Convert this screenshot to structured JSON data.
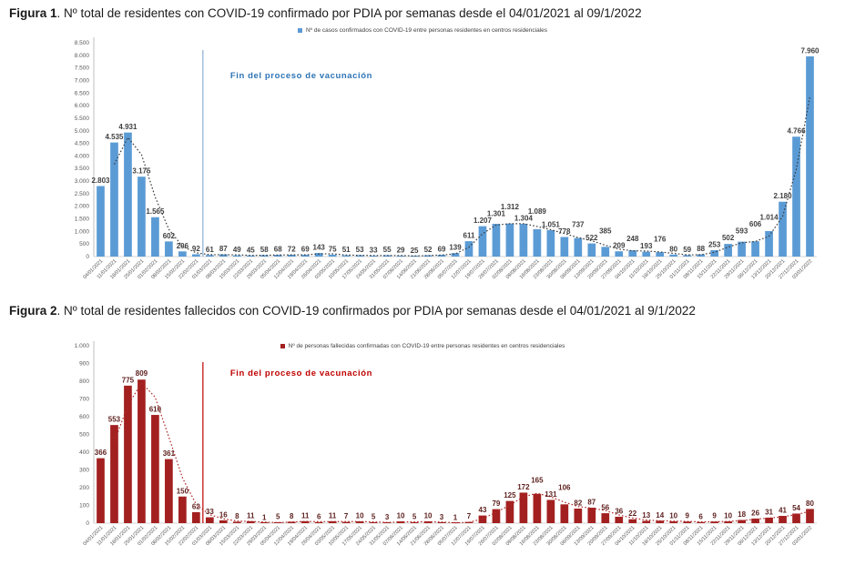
{
  "fig1": {
    "title_bold": "Figura 1",
    "title_rest": ". Nº total de residentes con COVID-19 confirmado por PDIA por semanas desde el 04/01/2021 al 09/1/2022"
  },
  "fig2": {
    "title_bold": "Figura 2",
    "title_rest": ". Nº total de residentes fallecidos con COVID-19 confirmados por PDIA por semanas desde el 04/01/2021 al 9/1/2022"
  },
  "chart_data": [
    {
      "id": "confirmed-cases",
      "type": "bar",
      "title": "Figura 1. Nº total de residentes con COVID-19 confirmado por PDIA por semanas desde el 04/01/2021 al 09/1/2022",
      "legend": "Nº de casos confirmados con COVID-19 entre personas residentes en centros residenciales",
      "legend_position": "top",
      "annotation": "Fin del proceso de vacunación",
      "annotation_color": "#2e74b5",
      "vline_after_category": "22/02/2021",
      "vline_color": "#8aafd4",
      "bar_color": "#5b9bd5",
      "label_color": "#3f3f3f",
      "trend_color": "#3a3a3a",
      "trend": "2-period moving average, dotted",
      "grid": false,
      "xlabel": "",
      "ylabel": "",
      "ylim": [
        0,
        8500
      ],
      "ytick_step": 500,
      "categories": [
        "04/01/2021",
        "11/01/2021",
        "18/01/2021",
        "25/01/2021",
        "01/02/2021",
        "08/02/2021",
        "15/02/2021",
        "22/02/2021",
        "01/03/2021",
        "08/03/2021",
        "15/03/2021",
        "22/03/2021",
        "29/03/2021",
        "05/04/2021",
        "12/04/2021",
        "19/04/2021",
        "26/04/2021",
        "03/05/2021",
        "10/05/2021",
        "17/05/2021",
        "24/05/2021",
        "31/05/2021",
        "07/06/2021",
        "14/06/2021",
        "21/06/2021",
        "28/06/2021",
        "05/07/2021",
        "12/07/2021",
        "19/07/2021",
        "26/07/2021",
        "02/08/2021",
        "09/08/2021",
        "16/08/2021",
        "23/08/2021",
        "30/08/2021",
        "06/09/2021",
        "13/09/2021",
        "20/09/2021",
        "27/09/2021",
        "04/10/2021",
        "11/10/2021",
        "18/10/2021",
        "25/10/2021",
        "01/11/2021",
        "08/11/2021",
        "15/11/2021",
        "22/11/2021",
        "29/11/2021",
        "06/12/2021",
        "13/12/2021",
        "20/12/2021",
        "27/12/2021",
        "03/01/2022"
      ],
      "values": [
        2803,
        4535,
        4931,
        3175,
        1565,
        602,
        206,
        92,
        61,
        87,
        49,
        45,
        58,
        68,
        72,
        69,
        143,
        75,
        51,
        53,
        33,
        55,
        29,
        25,
        52,
        69,
        139,
        611,
        1207,
        1301,
        1312,
        1304,
        1089,
        1051,
        778,
        737,
        522,
        385,
        209,
        248,
        193,
        176,
        80,
        59,
        88,
        253,
        502,
        593,
        606,
        1014,
        2180,
        4766,
        7960
      ]
    },
    {
      "id": "deceased-residents",
      "type": "bar",
      "title": "Figura 2. Nº total de residentes fallecidos con COVID-19 confirmados por PDIA por semanas desde el 04/01/2021 al 9/1/2022",
      "legend": "Nº de personas fallecidas confirmadas con COVID-19 entre personas residentes en centros residenciales",
      "legend_position": "top",
      "annotation": "Fin del proceso de vacunación",
      "annotation_color": "#c00000",
      "vline_after_category": "22/02/2021",
      "vline_color": "#c00000",
      "bar_color": "#a32020",
      "label_color": "#5e2220",
      "trend_color": "#b02a2a",
      "trend": "2-period moving average, dotted",
      "grid": false,
      "xlabel": "",
      "ylabel": "",
      "ylim": [
        0,
        1000
      ],
      "ytick_step": 100,
      "categories": [
        "04/01/2021",
        "11/01/2021",
        "18/01/2021",
        "25/01/2021",
        "01/02/2021",
        "08/02/2021",
        "15/02/2021",
        "22/02/2021",
        "01/03/2021",
        "08/03/2021",
        "15/03/2021",
        "22/03/2021",
        "29/03/2021",
        "05/04/2021",
        "12/04/2021",
        "19/04/2021",
        "26/04/2021",
        "03/05/2021",
        "10/05/2021",
        "17/05/2021",
        "24/05/2021",
        "31/05/2021",
        "07/06/2021",
        "14/06/2021",
        "21/06/2021",
        "28/06/2021",
        "05/07/2021",
        "12/07/2021",
        "19/07/2021",
        "26/07/2021",
        "02/08/2021",
        "09/08/2021",
        "16/08/2021",
        "23/08/2021",
        "30/08/2021",
        "06/09/2021",
        "13/09/2021",
        "20/09/2021",
        "27/09/2021",
        "04/10/2021",
        "11/10/2021",
        "18/10/2021",
        "25/10/2021",
        "01/11/2021",
        "08/11/2021",
        "15/11/2021",
        "22/11/2021",
        "29/11/2021",
        "06/12/2021",
        "13/12/2021",
        "20/12/2021",
        "27/12/2021",
        "03/01/2022"
      ],
      "values": [
        366,
        553,
        775,
        809,
        610,
        361,
        150,
        62,
        33,
        16,
        8,
        11,
        1,
        5,
        8,
        11,
        6,
        11,
        7,
        10,
        5,
        3,
        10,
        5,
        10,
        3,
        1,
        7,
        43,
        79,
        125,
        172,
        165,
        131,
        106,
        82,
        87,
        56,
        36,
        22,
        13,
        14,
        10,
        9,
        6,
        9,
        10,
        18,
        26,
        31,
        41,
        54,
        80
      ]
    }
  ]
}
